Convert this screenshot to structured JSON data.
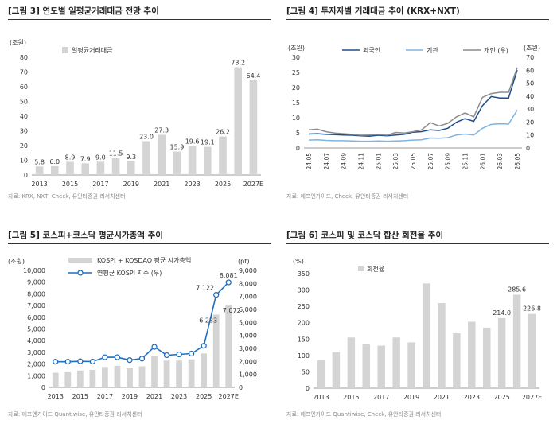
{
  "panels": {
    "p1": {
      "title": "[그림 3] 연도별 일평균거래대금 전망 추이",
      "source": "자료: KRX, NXT, Check, 유안타증권 리서치센터"
    },
    "p2": {
      "title": "[그림 4] 투자자별 거래대금 추이 (KRX+NXT)",
      "source": "자료: 에프엔가이드, Check, 유안타증권 리서치센터"
    },
    "p3": {
      "title": "[그림 5] 코스피+코스닥 평균시가총액 추이",
      "source": "자료: 에프엔가이드 Quantiwise, 유안타증권 리서치센터"
    },
    "p4": {
      "title": "[그림 6] 코스피 및 코스닥 합산 회전율 추이",
      "source": "자료: 에프엔가이드 Quantiwise, Check, 유안타증권 리서치센터"
    }
  },
  "chart_data": [
    {
      "type": "bar",
      "ylabel": "(조원)",
      "ylim": [
        0,
        80
      ],
      "yticks": [
        "0",
        "10",
        "20",
        "30",
        "40",
        "50",
        "60",
        "70",
        "80"
      ],
      "categories": [
        "2013",
        "2014",
        "2015",
        "2016",
        "2017",
        "2018",
        "2019",
        "2020",
        "2021",
        "2022",
        "2023",
        "2024",
        "2025",
        "2026",
        "2027E"
      ],
      "xtick_labels": [
        "2013",
        "2015",
        "2017",
        "2019",
        "2021",
        "2023",
        "2025",
        "2027E"
      ],
      "series": [
        {
          "name": "일평균거래대금",
          "values": [
            5.8,
            6.0,
            8.9,
            7.9,
            9.0,
            11.5,
            9.3,
            23.0,
            27.3,
            15.9,
            19.6,
            19.1,
            26.2,
            73.2,
            64.4
          ]
        }
      ],
      "data_labels": [
        "5.8",
        "6.0",
        "8.9",
        "7.9",
        "9.0",
        "11.5",
        "9.3",
        "23.0",
        "27.3",
        "15.9",
        "19.6",
        "19.1",
        "26.2",
        "73.2",
        "64.4"
      ],
      "legend": "top-left",
      "colors": {
        "bar": "#d4d4d4"
      }
    },
    {
      "type": "line",
      "ylabel_left": "(조원)",
      "ylabel_right": "(조원)",
      "ylim_left": [
        0,
        30
      ],
      "ylim_right": [
        0,
        70
      ],
      "yticks_left": [
        "0",
        "5",
        "10",
        "15",
        "20",
        "25",
        "30"
      ],
      "yticks_right": [
        "0",
        "10",
        "20",
        "30",
        "40",
        "50",
        "60",
        "70"
      ],
      "x": [
        "24.05",
        "24.06",
        "24.07",
        "24.08",
        "24.09",
        "24.10",
        "24.11",
        "24.12",
        "25.01",
        "25.02",
        "25.03",
        "25.04",
        "25.05",
        "25.06",
        "25.07",
        "25.08",
        "25.09",
        "25.10",
        "25.11",
        "25.12",
        "26.01",
        "26.02",
        "26.03",
        "26.04",
        "26.05"
      ],
      "xtick_labels": [
        "24.05",
        "24.07",
        "24.09",
        "24.11",
        "25.01",
        "25.03",
        "25.05",
        "25.07",
        "25.09",
        "25.11",
        "26.01",
        "26.03",
        "26.05"
      ],
      "series": [
        {
          "name": "외국인",
          "axis": "left",
          "values": [
            4.6,
            4.7,
            4.5,
            4.4,
            4.3,
            4.2,
            4.0,
            3.9,
            4.2,
            4.0,
            4.3,
            4.5,
            5.2,
            5.4,
            6.0,
            5.8,
            6.5,
            8.5,
            9.7,
            8.8,
            14.0,
            17.0,
            16.5,
            16.5,
            25.8
          ]
        },
        {
          "name": "기관",
          "axis": "left",
          "values": [
            2.6,
            2.7,
            2.5,
            2.4,
            2.4,
            2.3,
            2.2,
            2.2,
            2.3,
            2.2,
            2.3,
            2.4,
            2.6,
            2.7,
            3.3,
            3.2,
            3.4,
            4.3,
            4.6,
            4.3,
            6.5,
            7.8,
            8.0,
            7.9,
            12.5
          ]
        },
        {
          "name": "개인 (우)",
          "axis": "right",
          "values": [
            14.0,
            14.5,
            12.5,
            11.5,
            11.0,
            10.5,
            9.8,
            10.0,
            10.5,
            9.8,
            12.0,
            11.5,
            12.5,
            14.0,
            19.5,
            17.0,
            19.0,
            24.0,
            27.0,
            24.0,
            39.0,
            42.0,
            43.0,
            43.0,
            62.0
          ]
        }
      ],
      "legend": "top",
      "colors": {
        "외국인": "#1f4e8c",
        "기관": "#7cb4e4",
        "개인 (우)": "#8c8c8c"
      }
    },
    {
      "type": "bar",
      "ylabel_left": "(조원)",
      "ylabel_right": "(pt)",
      "ylim_left": [
        0,
        10000
      ],
      "ylim_right": [
        0,
        9000
      ],
      "yticks_left": [
        "0",
        "1,000",
        "2,000",
        "3,000",
        "4,000",
        "5,000",
        "6,000",
        "7,000",
        "8,000",
        "9,000",
        "10,000"
      ],
      "yticks_right": [
        "0",
        "1,000",
        "2,000",
        "3,000",
        "4,000",
        "5,000",
        "6,000",
        "7,000",
        "8,000",
        "9,000"
      ],
      "categories": [
        "2013",
        "2014",
        "2015",
        "2016",
        "2017",
        "2018",
        "2019",
        "2020",
        "2021",
        "2022",
        "2023",
        "2024",
        "2025",
        "2026",
        "2027E"
      ],
      "xtick_labels": [
        "2013",
        "2015",
        "2017",
        "2019",
        "2021",
        "2023",
        "2025",
        "2027E"
      ],
      "series": [
        {
          "name": "KOSPI + KOSDAQ 평균 시가총액",
          "kind": "bar",
          "axis": "left",
          "values": [
            1250,
            1300,
            1450,
            1500,
            1750,
            1850,
            1700,
            1800,
            2700,
            2300,
            2300,
            2400,
            2900,
            6233,
            7072
          ]
        },
        {
          "name": "연평균 KOSPI 지수 (우)",
          "kind": "line",
          "axis": "right",
          "values": [
            1980,
            1980,
            2010,
            1990,
            2320,
            2320,
            2100,
            2220,
            3120,
            2480,
            2540,
            2600,
            3200,
            7122,
            8081
          ]
        }
      ],
      "data_labels_bar": {
        "13": "6,233",
        "14": "7,072"
      },
      "data_labels_line": {
        "13": "7,122",
        "14": "8,081"
      },
      "legend": "top-left",
      "colors": {
        "bar": "#d4d4d4",
        "line": "#1f6fc0"
      }
    },
    {
      "type": "bar",
      "ylabel": "(%)",
      "ylim": [
        0,
        350
      ],
      "yticks": [
        "0",
        "50",
        "100",
        "150",
        "200",
        "250",
        "300",
        "350"
      ],
      "categories": [
        "2013",
        "2014",
        "2015",
        "2016",
        "2017",
        "2018",
        "2019",
        "2020",
        "2021",
        "2022",
        "2023",
        "2024",
        "2025",
        "2026",
        "2027E"
      ],
      "xtick_labels": [
        "2013",
        "2015",
        "2017",
        "2019",
        "2021",
        "2023",
        "2025",
        "2027E"
      ],
      "series": [
        {
          "name": "회전율",
          "values": [
            85,
            110,
            155,
            135,
            130,
            155,
            140,
            320,
            260,
            168,
            203,
            185,
            214.0,
            285.6,
            226.8
          ]
        }
      ],
      "data_labels": {
        "12": "214.0",
        "13": "285.6",
        "14": "226.8"
      },
      "legend": "top-left",
      "colors": {
        "bar": "#d4d4d4"
      }
    }
  ]
}
